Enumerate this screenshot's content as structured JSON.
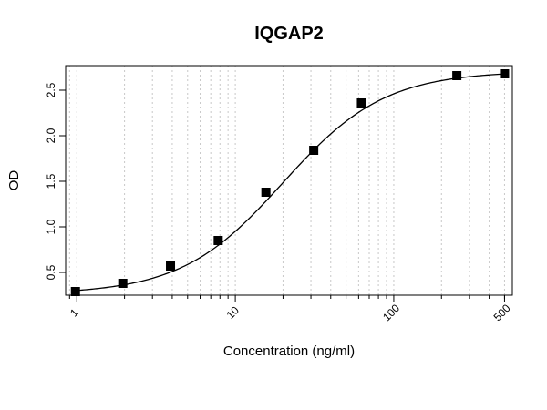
{
  "chart_data": {
    "type": "scatter",
    "title": "IQGAP2",
    "xlabel": "Concentration (ng/ml)",
    "ylabel": "OD",
    "x_scale": "log",
    "xlim": [
      0.85,
      560
    ],
    "ylim": [
      0.25,
      2.77
    ],
    "x_ticks": [
      1,
      10,
      100,
      500
    ],
    "x_tick_labels": [
      "1",
      "10",
      "100",
      "500"
    ],
    "y_ticks": [
      0.5,
      1.0,
      1.5,
      2.0,
      2.5
    ],
    "y_tick_labels": [
      "0.5",
      "1.0",
      "1.5",
      "2.0",
      "2.5"
    ],
    "grid": "vertical dotted at log minor ticks",
    "series": [
      {
        "marker": "square",
        "color": "#000000",
        "x": [
          0.98,
          1.95,
          3.9,
          7.8,
          15.6,
          31.25,
          62.5,
          250,
          500
        ],
        "y": [
          0.29,
          0.38,
          0.57,
          0.85,
          1.38,
          1.84,
          2.36,
          2.66,
          2.68
        ]
      }
    ],
    "fit": {
      "type": "4PL",
      "bottom": 0.26,
      "top": 2.71,
      "ec50": 20,
      "hill": 1.35,
      "color": "#000000"
    }
  }
}
